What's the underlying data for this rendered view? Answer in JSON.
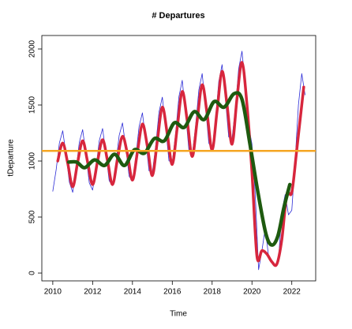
{
  "chart_data": {
    "type": "line",
    "title": "# Departures",
    "xlabel": "Time",
    "ylabel": "tDeparture",
    "xlim": [
      2009.45,
      2023.2
    ],
    "ylim": [
      -70,
      2120
    ],
    "xticks": [
      2010,
      2012,
      2014,
      2016,
      2018,
      2020,
      2022
    ],
    "yticks": [
      0,
      500,
      1000,
      1500,
      2000
    ],
    "reference_line": 1090,
    "reference_color": "#f5a623",
    "series": [
      {
        "color": "#2b2bd6",
        "width": 0.8,
        "x": [
          2010,
          2010.167,
          2010.333,
          2010.5,
          2010.667,
          2010.833,
          2011,
          2011.167,
          2011.333,
          2011.5,
          2011.667,
          2011.833,
          2012,
          2012.167,
          2012.333,
          2012.5,
          2012.667,
          2012.833,
          2013,
          2013.167,
          2013.333,
          2013.5,
          2013.667,
          2013.833,
          2014,
          2014.167,
          2014.333,
          2014.5,
          2014.667,
          2014.833,
          2015,
          2015.167,
          2015.333,
          2015.5,
          2015.667,
          2015.833,
          2016,
          2016.167,
          2016.333,
          2016.5,
          2016.667,
          2016.833,
          2017,
          2017.167,
          2017.333,
          2017.5,
          2017.667,
          2017.833,
          2018,
          2018.167,
          2018.333,
          2018.5,
          2018.667,
          2018.833,
          2019,
          2019.167,
          2019.333,
          2019.5,
          2019.667,
          2019.833,
          2020,
          2020.167,
          2020.333,
          2020.5,
          2020.667,
          2020.833,
          2021,
          2021.167,
          2021.333,
          2021.5,
          2021.667,
          2021.833,
          2022,
          2022.167,
          2022.333,
          2022.5,
          2022.667
        ],
        "values": [
          730,
          919,
          1162,
          1270,
          1054,
          811,
          720,
          916,
          1168,
          1280,
          1056,
          804,
          740,
          933,
          1180,
          1290,
          1070,
          823,
          780,
          976,
          1228,
          1340,
          1116,
          864,
          820,
          1034,
          1308,
          1430,
          1186,
          912,
          900,
          1135,
          1436,
          1570,
          1302,
          1001,
          990,
          1246,
          1574,
          1720,
          1428,
          1100,
          1050,
          1306,
          1634,
          1780,
          1488,
          1160,
          1100,
          1366,
          1708,
          1860,
          1556,
          1214,
          1200,
          1473,
          1824,
          1980,
          1668,
          1317,
          1150,
          700,
          30,
          200,
          400,
          150,
          100,
          60,
          120,
          550,
          700,
          520,
          560,
          1000,
          1500,
          1780,
          1590
        ]
      },
      {
        "color": "#d7263d",
        "width": 3.5,
        "x": [
          2010.25,
          2010.5,
          2010.75,
          2011,
          2011.25,
          2011.5,
          2011.75,
          2012,
          2012.25,
          2012.5,
          2012.75,
          2013,
          2013.25,
          2013.5,
          2013.75,
          2014,
          2014.25,
          2014.5,
          2014.75,
          2015,
          2015.25,
          2015.5,
          2015.75,
          2016,
          2016.25,
          2016.5,
          2016.75,
          2017,
          2017.25,
          2017.5,
          2017.75,
          2018,
          2018.25,
          2018.5,
          2018.75,
          2019,
          2019.25,
          2019.5,
          2019.75,
          2020,
          2020.25,
          2020.5,
          2020.75,
          2021,
          2021.25,
          2021.5,
          2021.75,
          2022,
          2022.25,
          2022.6
        ],
        "values": [
          1000,
          1160,
          980,
          770,
          990,
          1180,
          990,
          790,
          1000,
          1190,
          1000,
          790,
          1020,
          1220,
          1060,
          830,
          1080,
          1330,
          1130,
          870,
          1180,
          1480,
          1240,
          970,
          1300,
          1620,
          1360,
          1040,
          1360,
          1680,
          1420,
          1100,
          1450,
          1800,
          1500,
          1150,
          1560,
          1880,
          1500,
          900,
          150,
          200,
          170,
          100,
          80,
          300,
          700,
          720,
          1100,
          1660
        ]
      },
      {
        "color": "#1e5a0f",
        "width": 4.5,
        "x": [
          2010.8,
          2011.2,
          2011.6,
          2012.1,
          2012.6,
          2013.1,
          2013.6,
          2014.1,
          2014.6,
          2015.1,
          2015.6,
          2016.1,
          2016.6,
          2017.1,
          2017.6,
          2018.1,
          2018.6,
          2019.1,
          2019.5,
          2019.9,
          2020.3,
          2020.7,
          2021,
          2021.3,
          2021.6,
          2021.9
        ],
        "values": [
          990,
          990,
          940,
          1010,
          960,
          1060,
          960,
          1100,
          1070,
          1200,
          1180,
          1340,
          1300,
          1440,
          1370,
          1530,
          1480,
          1600,
          1550,
          1150,
          720,
          350,
          250,
          330,
          580,
          790
        ]
      }
    ]
  }
}
